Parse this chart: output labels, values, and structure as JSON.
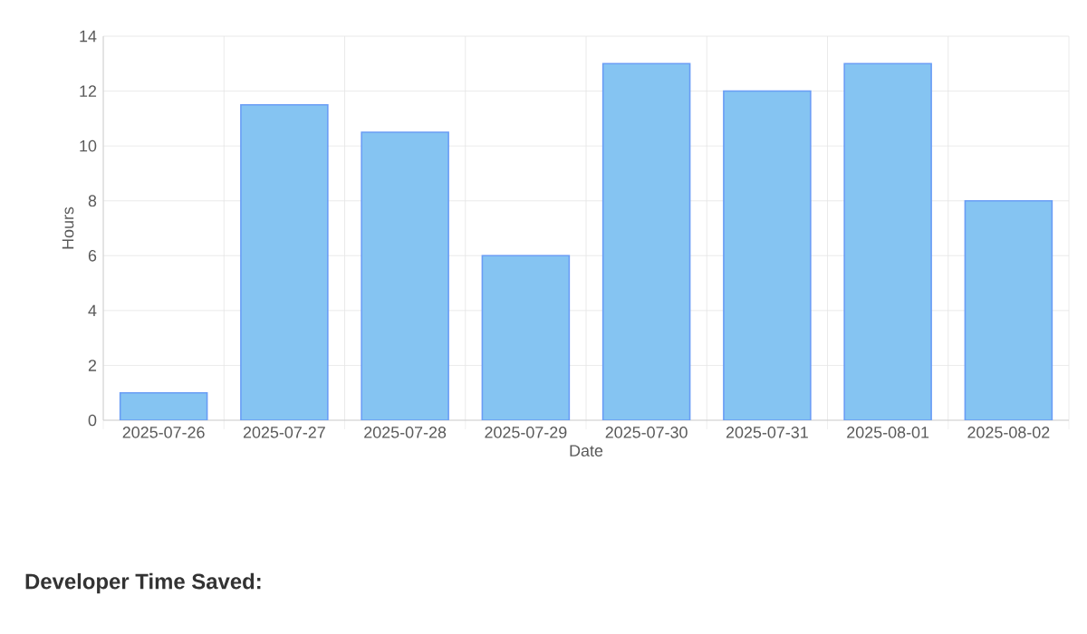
{
  "chart_data": {
    "type": "bar",
    "xlabel": "Date",
    "ylabel": "Hours",
    "categories": [
      "2025-07-26",
      "2025-07-27",
      "2025-07-28",
      "2025-07-29",
      "2025-07-30",
      "2025-07-31",
      "2025-08-01",
      "2025-08-02"
    ],
    "values": [
      1,
      11.5,
      10.5,
      6,
      13,
      12,
      13,
      8
    ],
    "color": "#85c4f2",
    "ylim": [
      0,
      14
    ],
    "yticks": [
      0,
      2,
      4,
      6,
      8,
      10,
      12,
      14
    ],
    "grid": true,
    "annotations": [
      "Developer Time Saved:"
    ]
  }
}
